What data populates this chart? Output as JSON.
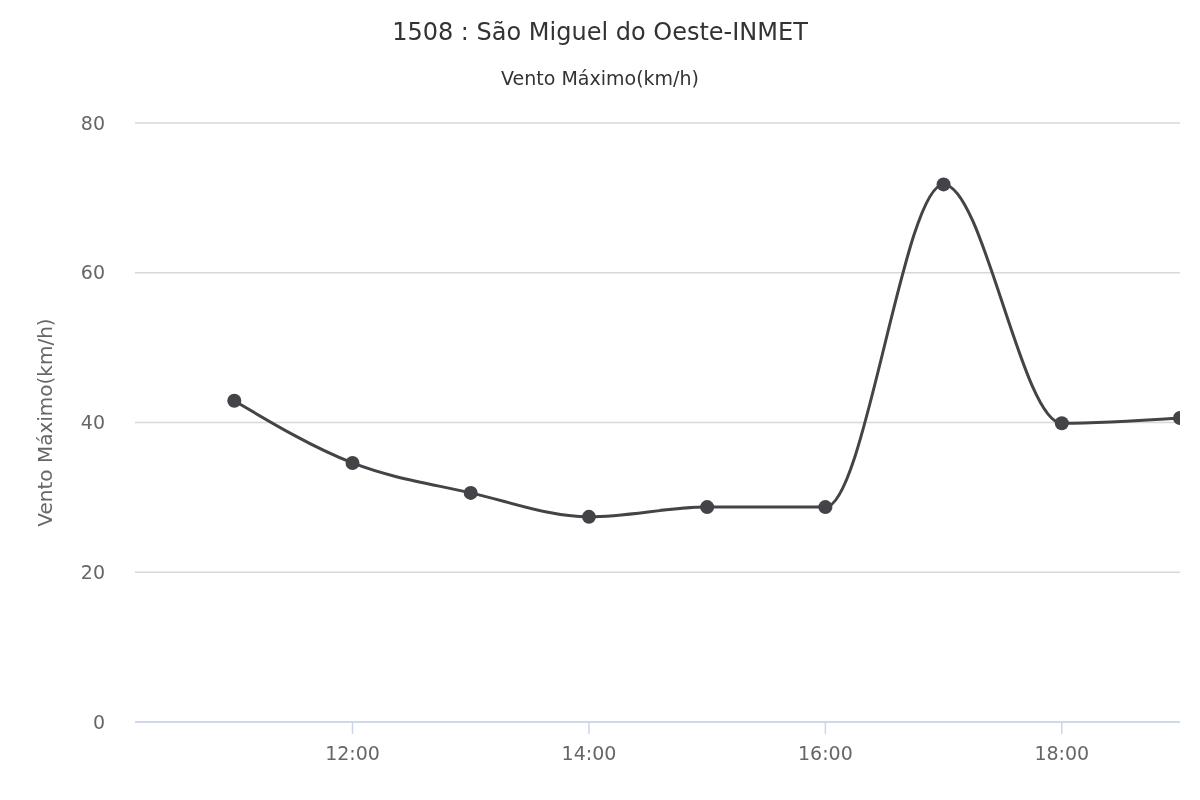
{
  "chart_data": {
    "type": "line",
    "title": "1508 : São Miguel do Oeste-INMET",
    "subtitle": "Vento Máximo(km/h)",
    "ylabel": "Vento Máximo(km/h)",
    "x": [
      11,
      12,
      13,
      14,
      15,
      16,
      17,
      18,
      19
    ],
    "series": [
      {
        "color": "#434348",
        "values": [
          42.9,
          34.6,
          30.6,
          27.4,
          28.7,
          28.7,
          71.8,
          39.9,
          40.6
        ]
      }
    ],
    "xlim": [
      10.16,
      19
    ],
    "xticks": [
      {
        "value": 12,
        "label": "12:00"
      },
      {
        "value": 14,
        "label": "14:00"
      },
      {
        "value": 16,
        "label": "16:00"
      },
      {
        "value": 18,
        "label": "18:00"
      }
    ],
    "ylim": [
      0,
      80
    ],
    "yticks": [
      0,
      20,
      40,
      60,
      80
    ],
    "grid": "y",
    "marker": "circle",
    "line_style": "solid"
  }
}
